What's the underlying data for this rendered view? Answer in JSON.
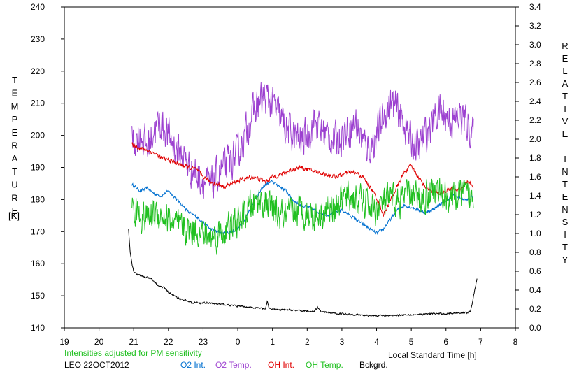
{
  "chart_data": {
    "type": "line",
    "left_axis": {
      "label": "TEMPERATURE",
      "unit": "[K]",
      "ylim": [
        140,
        240
      ],
      "ticks": [
        140,
        150,
        160,
        170,
        180,
        190,
        200,
        210,
        220,
        230,
        240
      ],
      "tick_labels": [
        "140",
        "150",
        "160",
        "170",
        "180",
        "190",
        "200",
        "210",
        "220",
        "230",
        "240"
      ]
    },
    "right_axis": {
      "label": "RELATIVE INTENSITY",
      "ylim": [
        0.0,
        3.4
      ],
      "ticks": [
        0.0,
        0.2,
        0.4,
        0.6,
        0.8,
        1.0,
        1.2,
        1.4,
        1.6,
        1.8,
        2.0,
        2.2,
        2.4,
        2.6,
        2.8,
        3.0,
        3.2,
        3.4
      ],
      "tick_labels": [
        "0.0",
        "0.2",
        "0.4",
        "0.6",
        "0.8",
        "1.0",
        "1.2",
        "1.4",
        "1.6",
        "1.8",
        "2.0",
        "2.2",
        "2.4",
        "2.6",
        "2.8",
        "3.0",
        "3.2",
        "3.4"
      ]
    },
    "x_axis": {
      "label": "Local Standard Time [h]",
      "xlim": [
        19,
        32
      ],
      "ticks": [
        19,
        20,
        21,
        22,
        23,
        24,
        25,
        26,
        27,
        28,
        29,
        30,
        31,
        32
      ],
      "tick_labels": [
        "19",
        "20",
        "21",
        "22",
        "23",
        "0",
        "1",
        "2",
        "3",
        "4",
        "5",
        "6",
        "7",
        "8"
      ]
    },
    "notes": {
      "adjusted": "Intensities adjusted for PM sensitivity",
      "station": "LEO 22OCT2012"
    },
    "grid": false,
    "series": [
      {
        "name": "O2 Int.",
        "axis": "right",
        "color": "#0070d0",
        "noise": 0.015,
        "x": [
          20.95,
          21.2,
          21.4,
          21.6,
          21.8,
          22.0,
          22.2,
          22.4,
          22.6,
          22.8,
          23.0,
          23.2,
          23.4,
          23.6,
          23.8,
          24.0,
          24.2,
          24.4,
          24.6,
          24.8,
          25.0,
          25.2,
          25.4,
          25.6,
          25.8,
          26.0,
          26.2,
          26.4,
          26.6,
          26.8,
          27.0,
          27.2,
          27.4,
          27.6,
          27.8,
          28.0,
          28.2,
          28.4,
          28.6,
          28.8,
          29.0,
          29.2,
          29.4,
          29.6,
          29.8,
          30.0,
          30.2,
          30.4,
          30.6,
          30.8
        ],
        "y": [
          1.52,
          1.45,
          1.48,
          1.42,
          1.4,
          1.45,
          1.38,
          1.3,
          1.22,
          1.18,
          1.12,
          1.05,
          1.02,
          1.0,
          1.02,
          1.05,
          1.15,
          1.3,
          1.42,
          1.52,
          1.55,
          1.5,
          1.45,
          1.35,
          1.3,
          1.28,
          1.25,
          1.22,
          1.2,
          1.22,
          1.25,
          1.2,
          1.15,
          1.1,
          1.05,
          1.0,
          1.05,
          1.15,
          1.25,
          1.3,
          1.28,
          1.25,
          1.22,
          1.25,
          1.3,
          1.35,
          1.4,
          1.38,
          1.35,
          1.4
        ]
      },
      {
        "name": "O2 Temp.",
        "axis": "left",
        "color": "#9c40d0",
        "noise": 5,
        "x": [
          20.95,
          21.2,
          21.4,
          21.6,
          21.8,
          22.0,
          22.2,
          22.4,
          22.6,
          22.8,
          23.0,
          23.2,
          23.4,
          23.6,
          23.8,
          24.0,
          24.2,
          24.4,
          24.6,
          24.8,
          25.0,
          25.2,
          25.4,
          25.6,
          25.8,
          26.0,
          26.2,
          26.4,
          26.6,
          26.8,
          27.0,
          27.2,
          27.4,
          27.6,
          27.8,
          28.0,
          28.2,
          28.4,
          28.6,
          28.8,
          29.0,
          29.2,
          29.4,
          29.6,
          29.8,
          30.0,
          30.2,
          30.4,
          30.6,
          30.8
        ],
        "y": [
          198,
          200,
          196,
          202,
          204,
          200,
          196,
          194,
          190,
          188,
          186,
          184,
          187,
          190,
          192,
          194,
          200,
          206,
          210,
          212,
          210,
          206,
          202,
          200,
          198,
          200,
          204,
          202,
          200,
          198,
          200,
          202,
          204,
          198,
          196,
          200,
          206,
          210,
          208,
          204,
          198,
          196,
          200,
          204,
          208,
          206,
          204,
          206,
          204,
          200
        ]
      },
      {
        "name": "OH Int.",
        "axis": "right",
        "color": "#e00000",
        "noise": 0.02,
        "x": [
          20.95,
          21.2,
          21.4,
          21.6,
          21.8,
          22.0,
          22.2,
          22.4,
          22.6,
          22.8,
          23.0,
          23.2,
          23.4,
          23.6,
          23.8,
          24.0,
          24.2,
          24.4,
          24.6,
          24.8,
          25.0,
          25.2,
          25.4,
          25.6,
          25.8,
          26.0,
          26.2,
          26.4,
          26.6,
          26.8,
          27.0,
          27.2,
          27.4,
          27.6,
          27.8,
          28.0,
          28.2,
          28.4,
          28.6,
          28.8,
          29.0,
          29.2,
          29.4,
          29.6,
          29.8,
          30.0,
          30.2,
          30.4,
          30.6,
          30.8
        ],
        "y": [
          1.95,
          1.9,
          1.88,
          1.85,
          1.8,
          1.78,
          1.75,
          1.72,
          1.7,
          1.68,
          1.6,
          1.55,
          1.52,
          1.5,
          1.52,
          1.56,
          1.58,
          1.6,
          1.58,
          1.55,
          1.6,
          1.62,
          1.65,
          1.68,
          1.7,
          1.68,
          1.66,
          1.64,
          1.62,
          1.6,
          1.62,
          1.65,
          1.64,
          1.6,
          1.5,
          1.38,
          1.2,
          1.35,
          1.5,
          1.65,
          1.72,
          1.6,
          1.5,
          1.45,
          1.42,
          1.45,
          1.48,
          1.45,
          1.55,
          1.5
        ]
      },
      {
        "name": "OH Temp.",
        "axis": "left",
        "color": "#20c020",
        "noise": 4.5,
        "x": [
          20.95,
          21.2,
          21.4,
          21.6,
          21.8,
          22.0,
          22.2,
          22.4,
          22.6,
          22.8,
          23.0,
          23.2,
          23.4,
          23.6,
          23.8,
          24.0,
          24.2,
          24.4,
          24.6,
          24.8,
          25.0,
          25.2,
          25.4,
          25.6,
          25.8,
          26.0,
          26.2,
          26.4,
          26.6,
          26.8,
          27.0,
          27.2,
          27.4,
          27.6,
          27.8,
          28.0,
          28.2,
          28.4,
          28.6,
          28.8,
          29.0,
          29.2,
          29.4,
          29.6,
          29.8,
          30.0,
          30.2,
          30.4,
          30.6,
          30.8
        ],
        "y": [
          177,
          175,
          174,
          176,
          175,
          174,
          172,
          171,
          170,
          171,
          169,
          168,
          169,
          170,
          171,
          173,
          175,
          178,
          180,
          179,
          177,
          175,
          174,
          176,
          177,
          176,
          175,
          176,
          177,
          178,
          180,
          181,
          180,
          179,
          178,
          177,
          179,
          180,
          179,
          181,
          182,
          180,
          181,
          183,
          182,
          181,
          180,
          182,
          181,
          180
        ]
      },
      {
        "name": "Bckgrd.",
        "axis": "right",
        "color": "#000000",
        "noise": 0.008,
        "x": [
          20.85,
          20.9,
          20.95,
          21.0,
          21.1,
          21.2,
          21.3,
          21.5,
          21.7,
          21.9,
          22.0,
          22.2,
          22.4,
          22.6,
          22.7,
          22.8,
          22.9,
          23.0,
          23.2,
          23.5,
          23.8,
          24.0,
          24.3,
          24.6,
          24.8,
          24.85,
          24.9,
          25.0,
          25.2,
          25.5,
          25.8,
          26.0,
          26.2,
          26.3,
          26.35,
          26.4,
          26.6,
          27.0,
          27.4,
          27.8,
          28.0,
          28.4,
          28.8,
          29.2,
          29.6,
          30.0,
          30.4,
          30.6,
          30.7,
          30.75,
          30.8,
          30.9
        ],
        "y": [
          1.05,
          0.8,
          0.68,
          0.6,
          0.57,
          0.55,
          0.54,
          0.52,
          0.45,
          0.42,
          0.38,
          0.33,
          0.3,
          0.28,
          0.26,
          0.27,
          0.26,
          0.27,
          0.26,
          0.25,
          0.24,
          0.23,
          0.22,
          0.21,
          0.2,
          0.28,
          0.21,
          0.2,
          0.19,
          0.19,
          0.18,
          0.18,
          0.17,
          0.22,
          0.19,
          0.17,
          0.16,
          0.15,
          0.14,
          0.13,
          0.13,
          0.13,
          0.14,
          0.14,
          0.15,
          0.15,
          0.16,
          0.16,
          0.18,
          0.25,
          0.35,
          0.53
        ]
      }
    ]
  }
}
